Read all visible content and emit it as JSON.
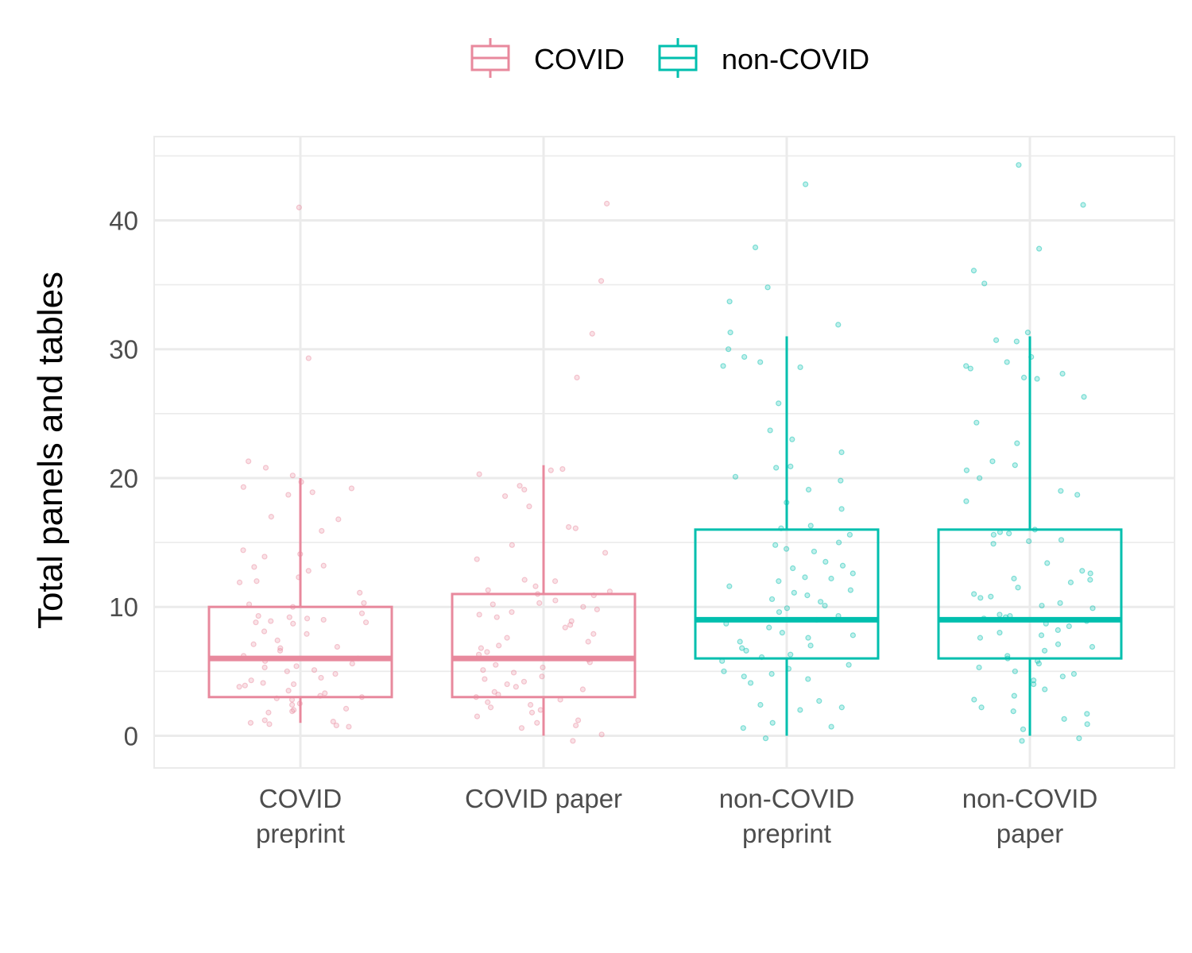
{
  "chart_data": {
    "type": "boxplot",
    "title": "",
    "xlabel": "",
    "ylabel": "Total panels and tables",
    "ylim": [
      -2.5,
      46.5
    ],
    "yticks": [
      0,
      10,
      20,
      30,
      40
    ],
    "grid": true,
    "legend": {
      "placement": "top",
      "entries": [
        {
          "name": "COVID",
          "color": "#E8899D"
        },
        {
          "name": "non-COVID",
          "color": "#00BFAE"
        }
      ]
    },
    "categories": [
      {
        "lines": [
          "COVID",
          "preprint"
        ],
        "group": "COVID"
      },
      {
        "lines": [
          "COVID paper"
        ],
        "group": "COVID"
      },
      {
        "lines": [
          "non-COVID",
          "preprint"
        ],
        "group": "non-COVID"
      },
      {
        "lines": [
          "non-COVID",
          "paper"
        ],
        "group": "non-COVID"
      }
    ],
    "boxes": [
      {
        "whisker_low": 1,
        "q1": 3,
        "median": 6,
        "q3": 10,
        "whisker_high": 20
      },
      {
        "whisker_low": 0,
        "q1": 3,
        "median": 6,
        "q3": 11,
        "whisker_high": 21
      },
      {
        "whisker_low": 0,
        "q1": 6,
        "median": 9,
        "q3": 16,
        "whisker_high": 31
      },
      {
        "whisker_low": 0,
        "q1": 6,
        "median": 9,
        "q3": 16,
        "whisker_high": 31
      }
    ],
    "points": [
      [
        41,
        29.3,
        21.3,
        20.8,
        20.2,
        19.7,
        19.3,
        19.2,
        18.9,
        18.7,
        17.0,
        16.8,
        15.9,
        14.4,
        14.1,
        13.9,
        13.2,
        13.1,
        12.8,
        12.3,
        12.0,
        11.9,
        11.1,
        10.3,
        10.2,
        10.0,
        9.5,
        9.3,
        9.2,
        9.1,
        9.0,
        8.9,
        8.8,
        8.8,
        8.7,
        8.1,
        7.9,
        7.4,
        7.1,
        6.9,
        6.8,
        6.6,
        6.2,
        6.0,
        5.8,
        5.6,
        5.4,
        5.3,
        5.1,
        5.0,
        4.8,
        4.5,
        4.3,
        4.1,
        4.0,
        3.9,
        3.8,
        3.5,
        3.3,
        3.1,
        3.0,
        2.9,
        2.8,
        2.5,
        2.4,
        2.1,
        2.0,
        1.9,
        1.8,
        1.2,
        1.1,
        1.0,
        0.9,
        0.8,
        0.7
      ],
      [
        41.3,
        35.3,
        31.2,
        27.8,
        20.7,
        20.6,
        20.3,
        19.4,
        19.1,
        18.6,
        17.8,
        16.2,
        16.1,
        14.8,
        14.2,
        13.7,
        12.1,
        12.0,
        11.6,
        11.3,
        11.2,
        11.0,
        10.9,
        10.5,
        10.3,
        10.2,
        10.0,
        9.8,
        9.6,
        9.4,
        9.2,
        8.9,
        8.6,
        8.4,
        7.9,
        7.6,
        7.3,
        7.0,
        6.8,
        6.5,
        6.3,
        6.0,
        5.9,
        5.7,
        5.5,
        5.3,
        5.1,
        4.9,
        4.6,
        4.4,
        4.2,
        4.0,
        3.8,
        3.6,
        3.4,
        3.2,
        3.0,
        2.8,
        2.6,
        2.4,
        2.2,
        2.0,
        1.8,
        1.5,
        1.2,
        1.0,
        0.8,
        0.6,
        0.1,
        -0.4
      ],
      [
        42.8,
        37.9,
        34.8,
        33.7,
        31.9,
        31.3,
        30.0,
        29.4,
        29.0,
        28.7,
        28.6,
        25.8,
        23.7,
        23.0,
        22.0,
        20.9,
        20.8,
        20.1,
        19.8,
        19.1,
        18.1,
        17.6,
        16.3,
        16.1,
        15.6,
        15.0,
        14.8,
        14.5,
        14.3,
        13.5,
        13.2,
        13.0,
        12.6,
        12.3,
        12.2,
        12.0,
        11.6,
        11.3,
        11.1,
        10.9,
        10.6,
        10.4,
        10.1,
        9.9,
        9.6,
        9.3,
        9.0,
        8.7,
        8.4,
        8.0,
        7.8,
        7.6,
        7.3,
        7.0,
        6.8,
        6.6,
        6.3,
        6.1,
        5.8,
        5.5,
        5.2,
        5.0,
        4.8,
        4.6,
        4.4,
        4.1,
        2.7,
        2.4,
        2.2,
        2.0,
        1.0,
        0.7,
        0.6,
        -0.2
      ],
      [
        44.3,
        41.2,
        37.8,
        36.1,
        35.1,
        31.3,
        30.7,
        30.6,
        29.4,
        29.0,
        28.7,
        28.5,
        28.1,
        27.8,
        27.7,
        26.3,
        24.3,
        22.7,
        21.3,
        21.0,
        20.6,
        20.0,
        19.0,
        18.7,
        18.2,
        16.0,
        15.8,
        15.7,
        15.6,
        15.2,
        15.1,
        14.9,
        13.4,
        12.8,
        12.6,
        12.2,
        12.1,
        11.9,
        11.5,
        11.0,
        10.8,
        10.7,
        10.3,
        10.1,
        9.9,
        9.4,
        9.3,
        9.2,
        9.1,
        8.9,
        8.7,
        8.5,
        8.2,
        8.0,
        7.8,
        7.6,
        7.1,
        6.9,
        6.6,
        6.2,
        6.0,
        5.8,
        5.6,
        5.3,
        5.0,
        4.8,
        4.6,
        4.3,
        4.0,
        3.6,
        3.1,
        2.8,
        2.2,
        1.9,
        1.7,
        1.3,
        0.9,
        0.5,
        -0.2,
        -0.4
      ]
    ]
  }
}
